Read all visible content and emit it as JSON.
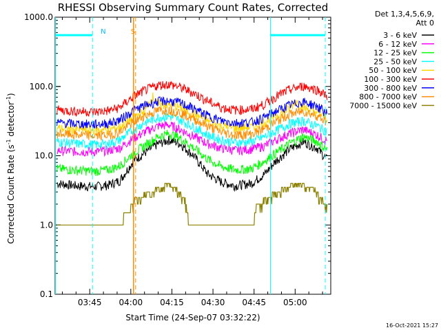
{
  "title": "RHESSI Observing Summary Count Rates, Corrected",
  "footer_date": "16-Oct-2021 15:27",
  "chart_data": {
    "type": "line",
    "title": "RHESSI Observing Summary Count Rates, Corrected",
    "xlabel": "Start Time (24-Sep-07 03:32:22)",
    "ylabel_main": "Corrected Count Rate (s",
    "ylabel_sup1": "-1",
    "ylabel_mid": " detector",
    "ylabel_sup2": "-1",
    "ylabel_end": ")",
    "y_scale": "log",
    "ylim": [
      0.1,
      1000
    ],
    "xlim": [
      "03:32:22",
      "05:13:00"
    ],
    "x_ticks": [
      {
        "t": "03:45",
        "label": "03:45"
      },
      {
        "t": "04:00",
        "label": "04:00"
      },
      {
        "t": "04:15",
        "label": "04:15"
      },
      {
        "t": "04:30",
        "label": "04:30"
      },
      {
        "t": "04:45",
        "label": "04:45"
      },
      {
        "t": "05:00",
        "label": "05:00"
      }
    ],
    "y_ticks": [
      {
        "v": 0.1,
        "label": "0.1"
      },
      {
        "v": 1,
        "label": "1.0"
      },
      {
        "v": 10,
        "label": "10.0"
      },
      {
        "v": 100,
        "label": "100.0"
      },
      {
        "v": 1000,
        "label": "1000.0"
      }
    ],
    "legend_header": [
      "Det 1,3,4,5,6,9,",
      "Att 0"
    ],
    "legend_position": "right",
    "grid": false,
    "series": [
      {
        "name": "3 - 6 keV",
        "color": "#000000",
        "x": [
          "03:33",
          "03:40",
          "03:47",
          "03:52",
          "03:56",
          "04:01",
          "04:05",
          "04:10",
          "04:14",
          "04:18",
          "04:23",
          "04:28",
          "04:33",
          "04:38",
          "04:44",
          "04:49",
          "04:53",
          "04:58",
          "05:03",
          "05:08",
          "05:12"
        ],
        "y": [
          4.0,
          3.7,
          3.6,
          3.8,
          4.4,
          8.5,
          11,
          15,
          17,
          15,
          10,
          5.5,
          4.2,
          3.7,
          4.0,
          5.5,
          8.5,
          12.5,
          16,
          13,
          8.5
        ]
      },
      {
        "name": "6 - 12 keV",
        "color": "#ff00ff",
        "x": [
          "03:33",
          "03:40",
          "03:47",
          "03:52",
          "03:56",
          "04:01",
          "04:05",
          "04:10",
          "04:14",
          "04:18",
          "04:23",
          "04:28",
          "04:33",
          "04:38",
          "04:44",
          "04:49",
          "04:53",
          "04:58",
          "05:03",
          "05:08",
          "05:12"
        ],
        "y": [
          12,
          11.5,
          11.5,
          12,
          13,
          18,
          22,
          27,
          28,
          24,
          19,
          15,
          13,
          12,
          12.5,
          14,
          17,
          21,
          24,
          20,
          16
        ]
      },
      {
        "name": "12 - 25 keV",
        "color": "#00ff00",
        "x": [
          "03:33",
          "03:40",
          "03:47",
          "03:52",
          "03:56",
          "04:01",
          "04:05",
          "04:10",
          "04:14",
          "04:18",
          "04:23",
          "04:28",
          "04:33",
          "04:38",
          "04:44",
          "04:49",
          "04:53",
          "04:58",
          "05:03",
          "05:08",
          "05:12"
        ],
        "y": [
          6.5,
          6.2,
          6.0,
          6.3,
          7.2,
          11,
          14,
          19,
          21,
          18,
          13,
          9,
          7,
          6.3,
          6.5,
          8.5,
          11,
          15,
          19,
          16,
          12
        ]
      },
      {
        "name": "25 - 50 keV",
        "color": "#00ffff",
        "x": [
          "03:33",
          "03:40",
          "03:47",
          "03:52",
          "03:56",
          "04:01",
          "04:05",
          "04:10",
          "04:14",
          "04:18",
          "04:23",
          "04:28",
          "04:33",
          "04:38",
          "04:44",
          "04:49",
          "04:53",
          "04:58",
          "05:03",
          "05:08",
          "05:12"
        ],
        "y": [
          16,
          15,
          14.5,
          15,
          17,
          24,
          30,
          36,
          37,
          33,
          26,
          20,
          17,
          15.5,
          16,
          19,
          23,
          29,
          32,
          27,
          22
        ]
      },
      {
        "name": "50 - 100 keV",
        "color": "#ffd700",
        "x": [
          "03:33",
          "03:40",
          "03:47",
          "03:52",
          "03:56",
          "04:01",
          "04:05",
          "04:08",
          "04:10",
          "04:14",
          "04:18",
          "04:23",
          "04:28",
          "04:33",
          "04:38",
          "04:44",
          "04:49",
          "04:53",
          "04:58",
          "05:00",
          "05:03",
          "05:08",
          "05:12"
        ],
        "y": [
          25,
          24,
          23.5,
          24,
          26,
          36,
          44,
          72,
          55,
          54,
          50,
          40,
          32,
          27,
          25,
          26,
          31,
          38,
          48,
          62,
          50,
          42,
          34
        ]
      },
      {
        "name": "100 - 300 keV",
        "color": "#ff0000",
        "x": [
          "03:33",
          "03:40",
          "03:47",
          "03:52",
          "03:56",
          "04:01",
          "04:05",
          "04:10",
          "04:14",
          "04:18",
          "04:23",
          "04:28",
          "04:33",
          "04:38",
          "04:44",
          "04:49",
          "04:53",
          "04:58",
          "05:03",
          "05:08",
          "05:12"
        ],
        "y": [
          46,
          44,
          43,
          45,
          50,
          72,
          88,
          105,
          108,
          98,
          80,
          62,
          50,
          46,
          47,
          56,
          72,
          90,
          102,
          90,
          72
        ]
      },
      {
        "name": "300 - 800 keV",
        "color": "#0000ff",
        "x": [
          "03:33",
          "03:40",
          "03:47",
          "03:52",
          "03:56",
          "04:01",
          "04:05",
          "04:10",
          "04:14",
          "04:18",
          "04:23",
          "04:28",
          "04:33",
          "04:38",
          "04:44",
          "04:49",
          "04:53",
          "04:58",
          "05:03",
          "05:08",
          "05:12"
        ],
        "y": [
          30,
          29,
          28.5,
          29.5,
          33,
          45,
          53,
          61,
          62,
          58,
          48,
          38,
          32,
          30,
          30.5,
          36,
          44,
          54,
          60,
          52,
          40
        ]
      },
      {
        "name": "800 - 7000 keV",
        "color": "#ff8c00",
        "x": [
          "03:33",
          "03:40",
          "03:47",
          "03:52",
          "03:56",
          "04:01",
          "04:05",
          "04:10",
          "04:14",
          "04:18",
          "04:23",
          "04:28",
          "04:33",
          "04:38",
          "04:44",
          "04:49",
          "04:53",
          "04:58",
          "05:03",
          "05:08",
          "05:12"
        ],
        "y": [
          21,
          20,
          19.5,
          20,
          22,
          31,
          38,
          45,
          46,
          42,
          34,
          27,
          22,
          20,
          20.5,
          25,
          31,
          40,
          44,
          38,
          30
        ]
      },
      {
        "name": "7000 - 15000 keV",
        "color": "#8b8000",
        "x": [
          "03:33",
          "03:47",
          "03:55",
          "03:57",
          "04:00",
          "04:02",
          "04:10",
          "04:14",
          "04:18",
          "04:20",
          "04:21",
          "04:40",
          "04:45",
          "04:46",
          "04:53",
          "05:00",
          "05:07",
          "05:09",
          "05:12"
        ],
        "y": [
          1.0,
          1.0,
          1.0,
          1.0,
          1.8,
          2.5,
          3.4,
          4.0,
          3.0,
          2.2,
          1.0,
          1.0,
          1.0,
          2.0,
          3.0,
          4.0,
          3.5,
          2.5,
          2.0
        ]
      }
    ],
    "annotations": [
      {
        "label": "N",
        "t": "03:48",
        "color": "#00bfff"
      },
      {
        "label": "S",
        "t": "03:59",
        "color": "#ff8c00"
      }
    ],
    "markers": {
      "night_spans": [
        [
          "03:32:22",
          "03:46"
        ],
        [
          "04:51",
          "05:11"
        ]
      ],
      "night_color": "#00ffff",
      "dashed_cyan_times": [
        "03:46",
        "05:11"
      ],
      "solid_cyan_times": [
        "03:32:30",
        "04:51"
      ],
      "saa_time": "04:01",
      "saa_color": "#ff8c00"
    }
  }
}
